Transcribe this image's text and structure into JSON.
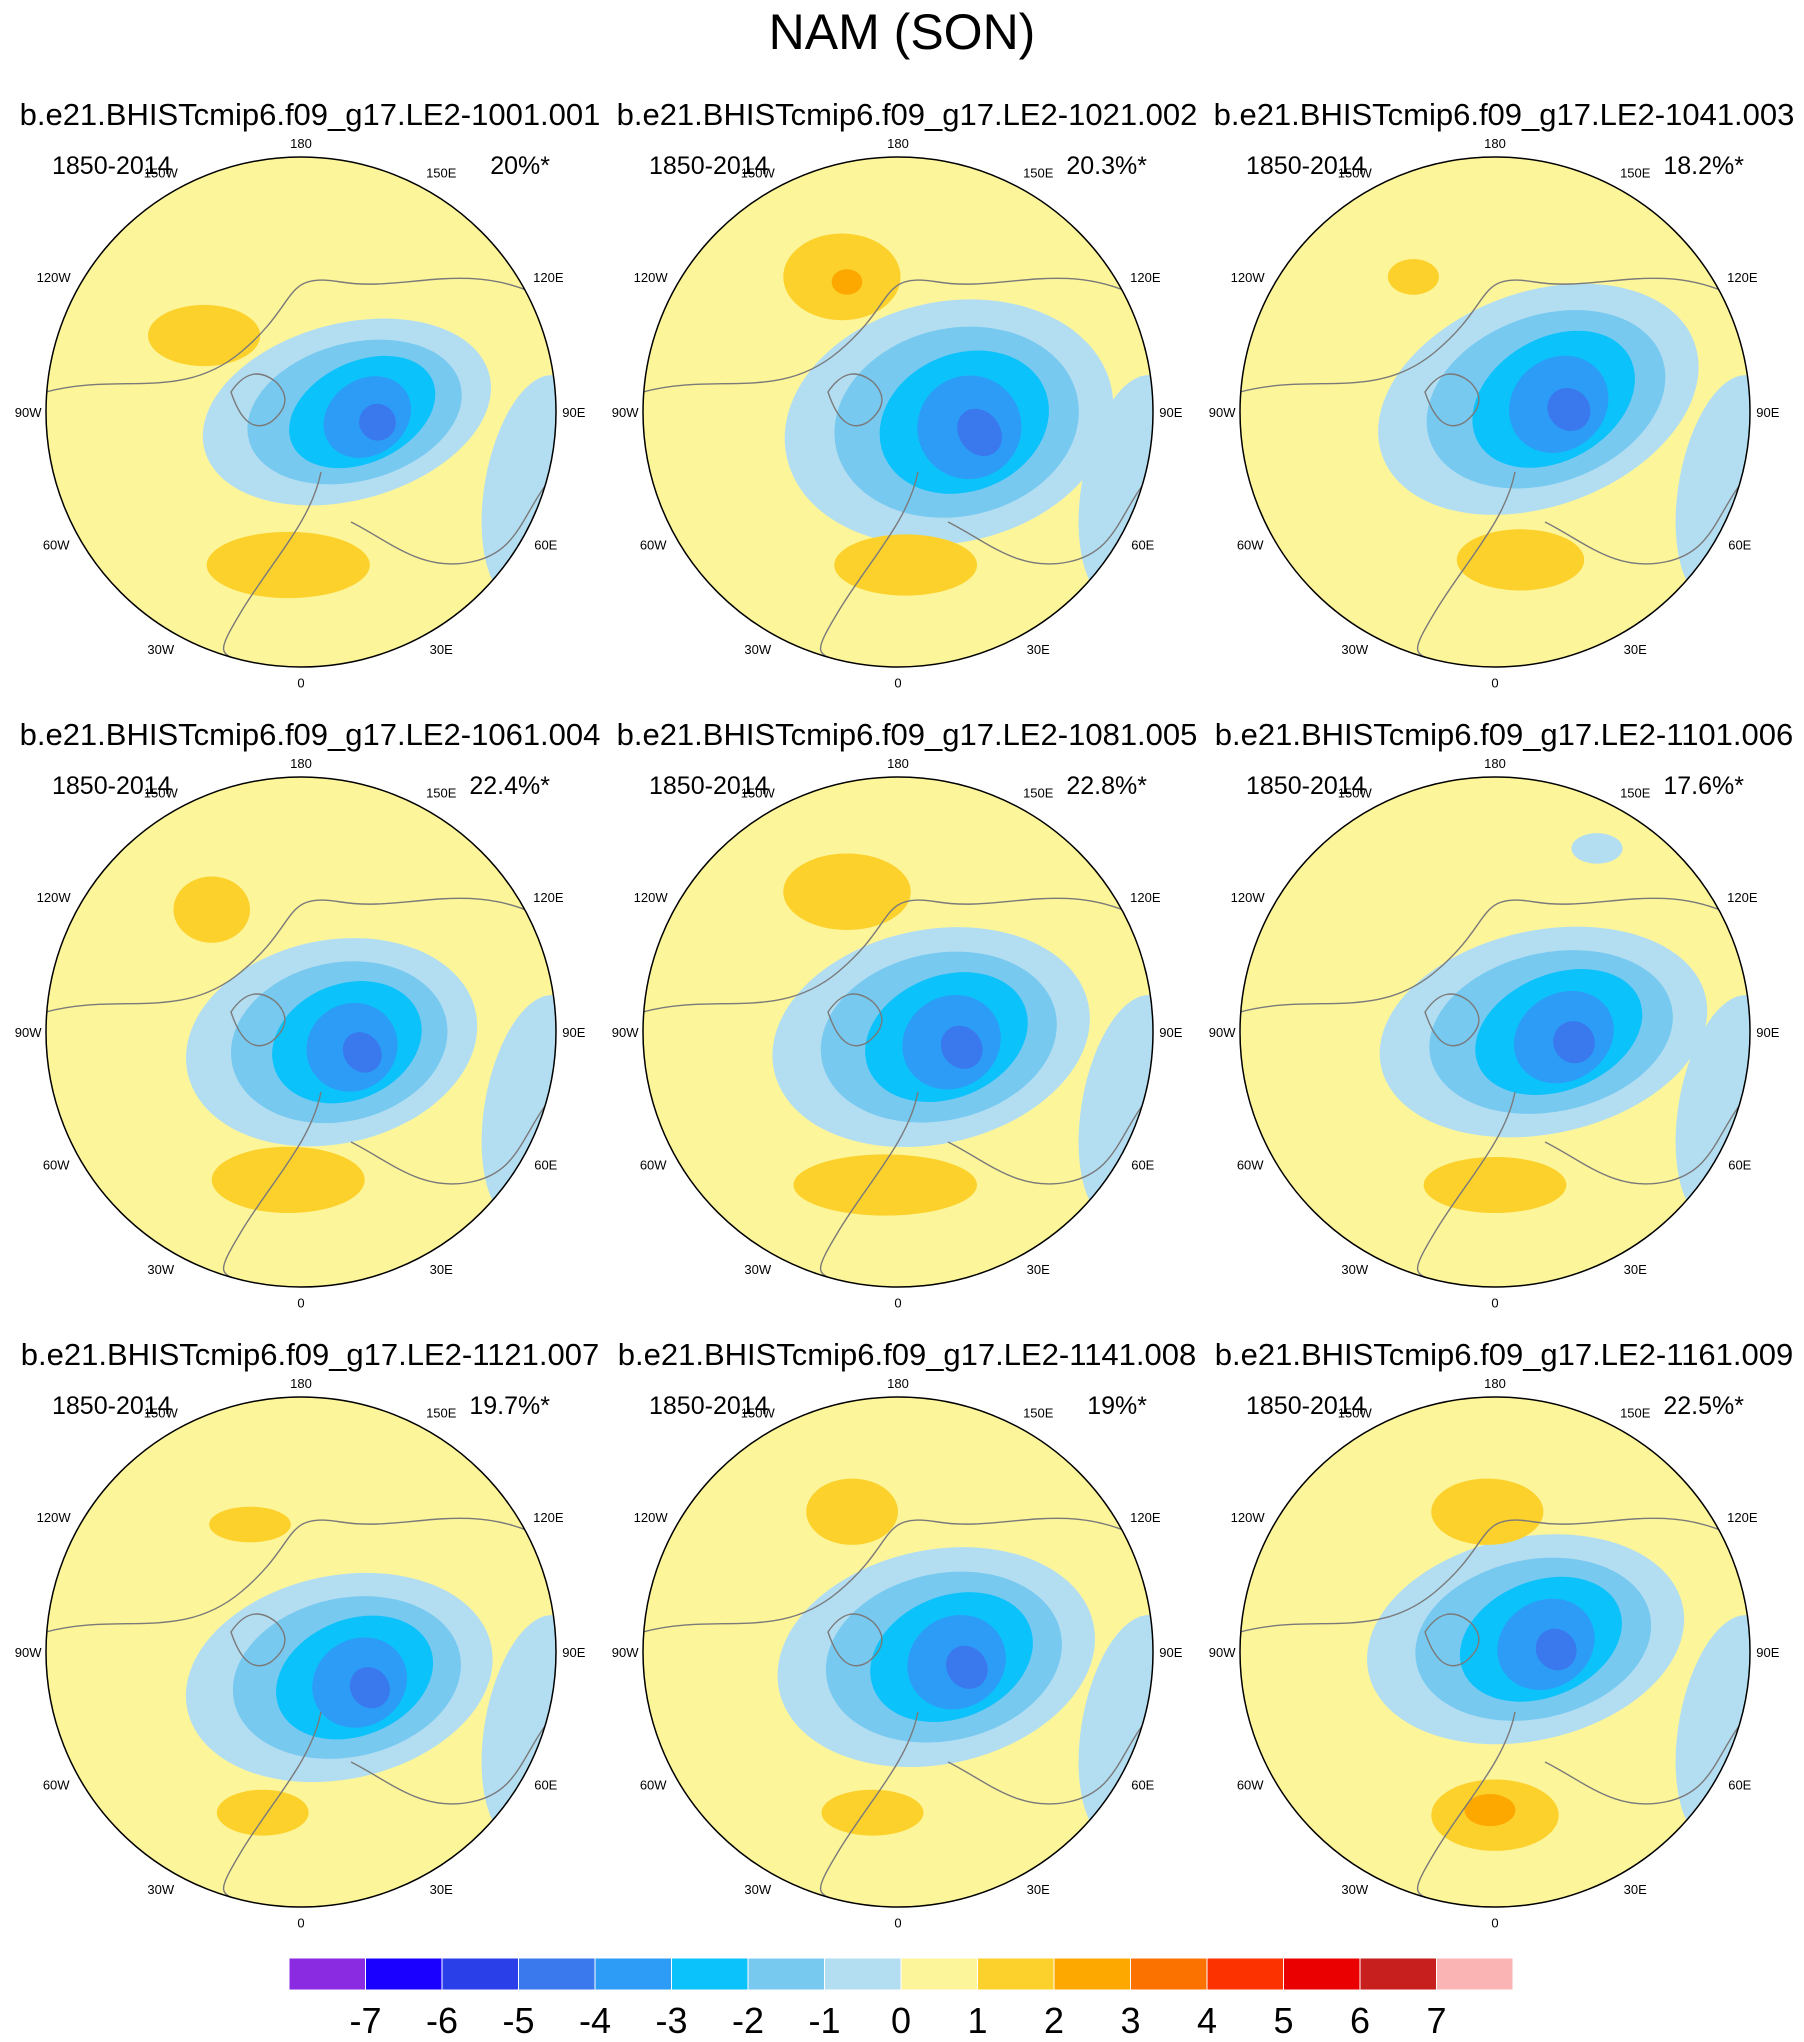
{
  "title": "NAM (SON)",
  "chart_data": {
    "type": "polar-contour-map",
    "projection": "north polar stereographic",
    "variable": "NAM (SON)",
    "panels": [
      {
        "title": "b.e21.BHISTcmip6.f09_g17.LE2-1001.001",
        "period": "1850-2014",
        "variance_explained": "20%*"
      },
      {
        "title": "b.e21.BHISTcmip6.f09_g17.LE2-1021.002",
        "period": "1850-2014",
        "variance_explained": "20.3%*"
      },
      {
        "title": "b.e21.BHISTcmip6.f09_g17.LE2-1041.003",
        "period": "1850-2014",
        "variance_explained": "18.2%*"
      },
      {
        "title": "b.e21.BHISTcmip6.f09_g17.LE2-1061.004",
        "period": "1850-2014",
        "variance_explained": "22.4%*"
      },
      {
        "title": "b.e21.BHISTcmip6.f09_g17.LE2-1081.005",
        "period": "1850-2014",
        "variance_explained": "22.8%*"
      },
      {
        "title": "b.e21.BHISTcmip6.f09_g17.LE2-1101.006",
        "period": "1850-2014",
        "variance_explained": "17.6%*"
      },
      {
        "title": "b.e21.BHISTcmip6.f09_g17.LE2-1121.007",
        "period": "1850-2014",
        "variance_explained": "19.7%*"
      },
      {
        "title": "b.e21.BHISTcmip6.f09_g17.LE2-1141.008",
        "period": "1850-2014",
        "variance_explained": "19%*"
      },
      {
        "title": "b.e21.BHISTcmip6.f09_g17.LE2-1161.009",
        "period": "1850-2014",
        "variance_explained": "22.5%*"
      }
    ],
    "longitude_labels": [
      "180",
      "150E",
      "120E",
      "90E",
      "60E",
      "30E",
      "0",
      "30W",
      "60W",
      "90W",
      "120W",
      "150W"
    ],
    "colorbar": {
      "levels": [
        -7,
        -6,
        -5,
        -4,
        -3,
        -2,
        -1,
        0,
        1,
        2,
        3,
        4,
        5,
        6,
        7
      ],
      "labels": [
        "-7",
        "-6",
        "-5",
        "-4",
        "-3",
        "-2",
        "-1",
        "0",
        "1",
        "2",
        "3",
        "4",
        "5",
        "6",
        "7"
      ],
      "colors": [
        "#8a2be2",
        "#1a00ff",
        "#2b3fe8",
        "#3a78ee",
        "#2c9cf6",
        "#0cc2fa",
        "#78c9f0",
        "#b3def2",
        "#fdf59a",
        "#fdd12c",
        "#fca800",
        "#fc7200",
        "#fc3300",
        "#ea0000",
        "#c71e1e",
        "#fbb4b4"
      ]
    }
  }
}
